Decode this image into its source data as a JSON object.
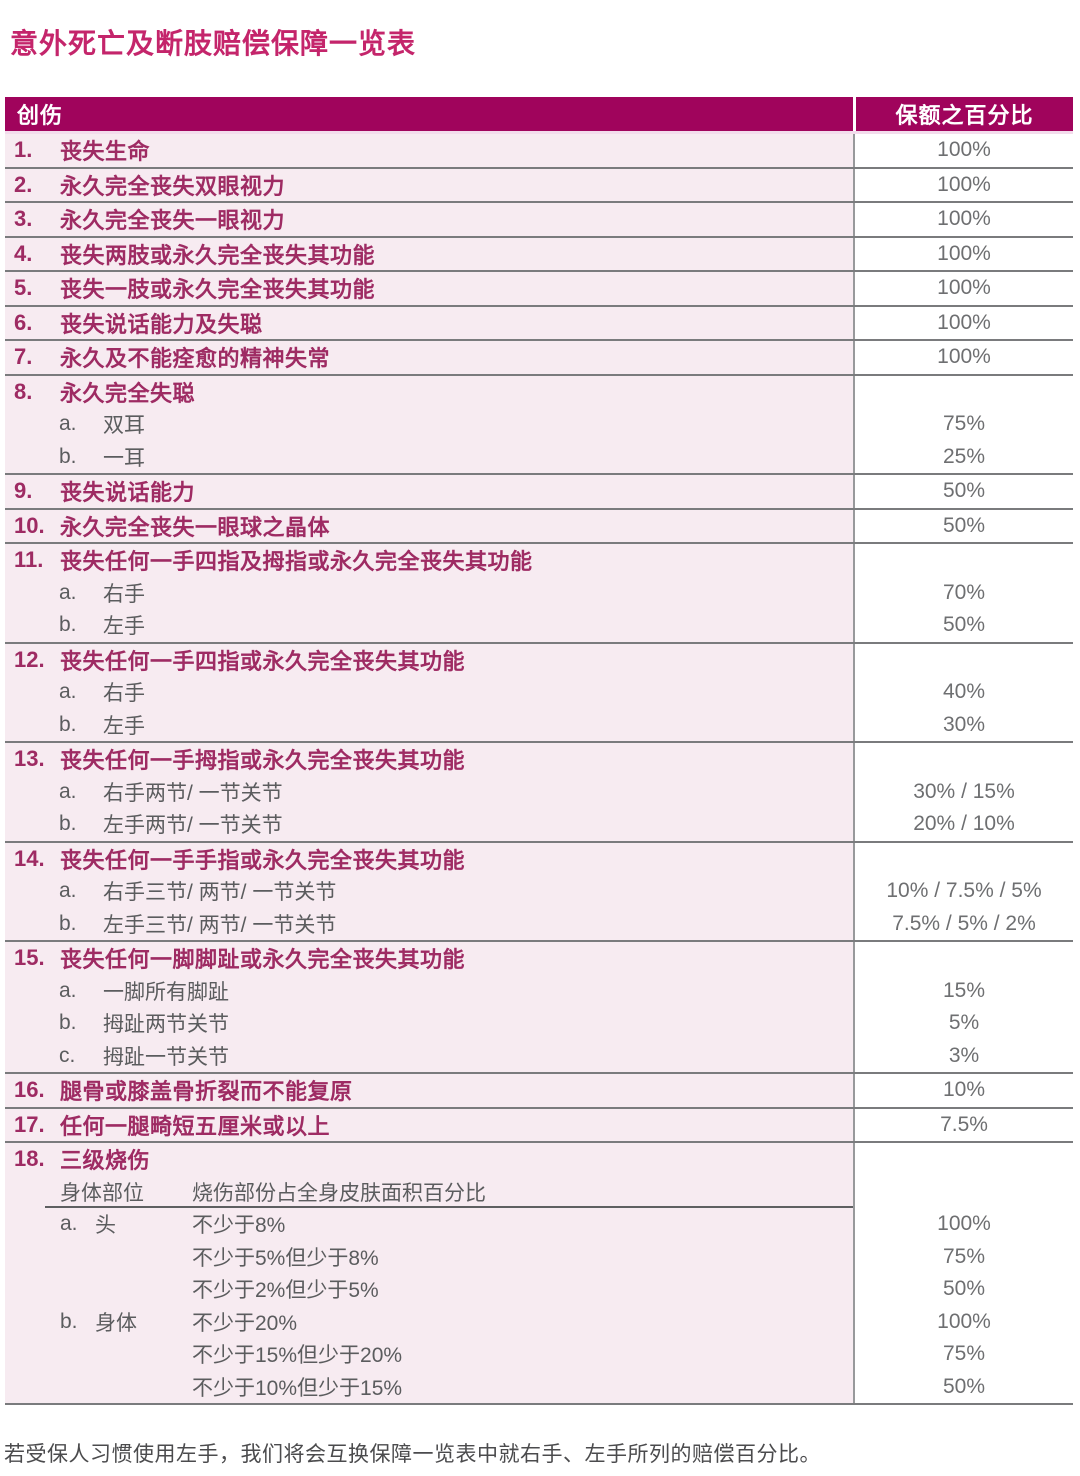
{
  "page": {
    "title": "意外死亡及断肢赔偿保障一览表",
    "footnote": "若受保人习惯使用左手，我们将会互换保障一览表中就右手、左手所列的赔偿百分比。"
  },
  "colors": {
    "title_text": "#C4256B",
    "header_bg": "#A0045C",
    "header_text": "#FFFFFF",
    "row_bg_pink": "#F7EBF1",
    "main_item_text": "#9E2B63",
    "sub_item_text": "#5B5C5E",
    "value_text": "#6E6F71",
    "divider_line": "#7A7B7D"
  },
  "table": {
    "header": {
      "injury": "创伤",
      "percent": "保额之百分比"
    },
    "rows": [
      {
        "num": "1.",
        "title": "丧失生命",
        "value": "100%"
      },
      {
        "num": "2.",
        "title": "永久完全丧失双眼视力",
        "value": "100%"
      },
      {
        "num": "3.",
        "title": "永久完全丧失一眼视力",
        "value": "100%"
      },
      {
        "num": "4.",
        "title": "丧失两肢或永久完全丧失其功能",
        "value": "100%"
      },
      {
        "num": "5.",
        "title": "丧失一肢或永久完全丧失其功能",
        "value": "100%"
      },
      {
        "num": "6.",
        "title": "丧失说话能力及失聪",
        "value": "100%"
      },
      {
        "num": "7.",
        "title": "永久及不能痊愈的精神失常",
        "value": "100%"
      },
      {
        "num": "8.",
        "title": "永久完全失聪",
        "value": "",
        "subs": [
          {
            "letter": "a.",
            "text": "双耳",
            "value": "75%"
          },
          {
            "letter": "b.",
            "text": "一耳",
            "value": "25%"
          }
        ]
      },
      {
        "num": "9.",
        "title": "丧失说话能力",
        "value": "50%"
      },
      {
        "num": "10.",
        "title": "永久完全丧失一眼球之晶体",
        "value": "50%"
      },
      {
        "num": "11.",
        "title": "丧失任何一手四指及拇指或永久完全丧失其功能",
        "value": "",
        "subs": [
          {
            "letter": "a.",
            "text": "右手",
            "value": "70%"
          },
          {
            "letter": "b.",
            "text": "左手",
            "value": "50%"
          }
        ]
      },
      {
        "num": "12.",
        "title": "丧失任何一手四指或永久完全丧失其功能",
        "value": "",
        "subs": [
          {
            "letter": "a.",
            "text": "右手",
            "value": "40%"
          },
          {
            "letter": "b.",
            "text": "左手",
            "value": "30%"
          }
        ]
      },
      {
        "num": "13.",
        "title": "丧失任何一手拇指或永久完全丧失其功能",
        "value": "",
        "subs": [
          {
            "letter": "a.",
            "text": "右手两节/ 一节关节",
            "value": "30% / 15%"
          },
          {
            "letter": "b.",
            "text": "左手两节/ 一节关节",
            "value": "20% / 10%"
          }
        ]
      },
      {
        "num": "14.",
        "title": "丧失任何一手手指或永久完全丧失其功能",
        "value": "",
        "subs": [
          {
            "letter": "a.",
            "text": "右手三节/ 两节/ 一节关节",
            "value": "10% / 7.5% / 5%"
          },
          {
            "letter": "b.",
            "text": "左手三节/ 两节/ 一节关节",
            "value": "7.5% / 5% / 2%"
          }
        ]
      },
      {
        "num": "15.",
        "title": "丧失任何一脚脚趾或永久完全丧失其功能",
        "value": "",
        "subs": [
          {
            "letter": "a.",
            "text": "一脚所有脚趾",
            "value": "15%"
          },
          {
            "letter": "b.",
            "text": "拇趾两节关节",
            "value": "5%"
          },
          {
            "letter": "c.",
            "text": "拇趾一节关节",
            "value": "3%"
          }
        ]
      },
      {
        "num": "16.",
        "title": "腿骨或膝盖骨折裂而不能复原",
        "value": "10%"
      },
      {
        "num": "17.",
        "title": "任何一腿畸短五厘米或以上",
        "value": "7.5%"
      },
      {
        "num": "18.",
        "title": "三级烧伤",
        "value": "",
        "subheader": {
          "col1": "身体部位",
          "col2": "烧伤部份占全身皮肤面积百分比"
        },
        "burns": [
          {
            "letter": "a.",
            "part": "头",
            "text": "不少于8%",
            "value": "100%"
          },
          {
            "letter": "",
            "part": "",
            "text": "不少于5%但少于8%",
            "value": "75%"
          },
          {
            "letter": "",
            "part": "",
            "text": "不少于2%但少于5%",
            "value": "50%"
          },
          {
            "letter": "b.",
            "part": "身体",
            "text": "不少于20%",
            "value": "100%"
          },
          {
            "letter": "",
            "part": "",
            "text": "不少于15%但少于20%",
            "value": "75%"
          },
          {
            "letter": "",
            "part": "",
            "text": "不少于10%但少于15%",
            "value": "50%"
          }
        ]
      }
    ]
  }
}
